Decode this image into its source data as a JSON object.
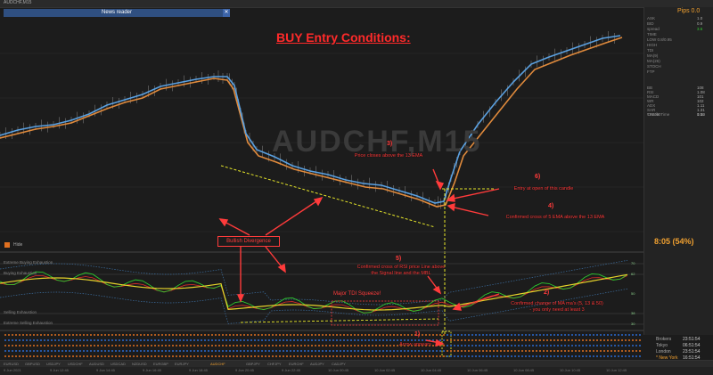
{
  "window": {
    "title": "AUDCHF,M15"
  },
  "news_reader": {
    "label": "News reader"
  },
  "watermark": "AUDCHF,M15",
  "headline": "BUY Entry Conditions:",
  "annotations": {
    "n1": "1)",
    "t1": "Arrow appears",
    "n2": "2)",
    "t2a": "Confirmed change of MA ma's (5, 13 & 50)",
    "t2b": "- you only need at least 3",
    "n3": "3)",
    "t3": "Price closes above the 13 EMA",
    "n4": "4)",
    "t4": "Confirmed cross of 5 EMA above the 13 EMA",
    "n5": "5)",
    "t5a": "Confirmed cross of RSI price Line above",
    "t5b": "the Signal line and the MBL",
    "n6": "6)",
    "t6": "Entry at open of this candle",
    "bullish": "Bullish Divergence",
    "squeeze": "Major TDI Squeeze!"
  },
  "right_panel": {
    "pips_label": "Pips 0.0",
    "rows": [
      {
        "label": "ASK",
        "value": "1.0"
      },
      {
        "label": "BID",
        "value": "0.9"
      },
      {
        "label": "spread",
        "value": "3.5"
      },
      {
        "label": "TIME",
        "value": ""
      },
      {
        "label": "LOW 0.8/0.95",
        "value": ""
      },
      {
        "label": "HIGH",
        "value": ""
      },
      {
        "label": "TDI",
        "value": ""
      },
      {
        "label": "MA(9)",
        "value": ""
      },
      {
        "label": "MA(26)",
        "value": ""
      },
      {
        "label": "STOCH",
        "value": ""
      },
      {
        "label": "FTP",
        "value": ""
      }
    ],
    "rows2": [
      {
        "label": "BB",
        "value": "108"
      },
      {
        "label": "RSI",
        "value": "1.08"
      },
      {
        "label": "MACD",
        "value": "101"
      },
      {
        "label": "WR",
        "value": "102"
      },
      {
        "label": "ADX",
        "value": "1.11"
      },
      {
        "label": "SAR",
        "value": "1.31"
      },
      {
        "label": "TREND",
        "value": "1.12"
      }
    ],
    "candle_time_label": "Candle Time",
    "candle_time_value": "0:00",
    "timer": "8:05 (54%)"
  },
  "hide_button": {
    "label": "Hide"
  },
  "indicator_labels": [
    "Extreme Buying Exhaustion",
    "Buying Exhaustion",
    "Selling Exhaustion",
    "Extreme Selling Exhaustion"
  ],
  "indicator_scale": [
    "70",
    "62",
    "50",
    "38",
    "30"
  ],
  "sessions": [
    {
      "city": "Brokers",
      "time": "23:51:54"
    },
    {
      "city": "Tokyo",
      "time": "06:51:54"
    },
    {
      "city": "London",
      "time": "23:51:54"
    },
    {
      "city": "* New York",
      "time": "16:51:54"
    }
  ],
  "tabs": [
    "EURUSD",
    "GBPUSD",
    "USDJPY",
    "USDCHF",
    "AUDUSD",
    "USDCAD",
    "NZDUSD",
    "EURGBP",
    "EURJPY",
    "AUDCHF",
    "GBPJPY",
    "CHFJPY",
    "EURCHF",
    "AUDJPY",
    "CADJPY"
  ],
  "active_tab": "AUDCHF",
  "time_axis": [
    "9 Jun 2021",
    "9 Jun 12:45",
    "9 Jun 14:45",
    "9 Jun 16:45",
    "9 Jun 18:45",
    "9 Jun 20:45",
    "9 Jun 22:45",
    "10 Jun 00:45",
    "10 Jun 02:45",
    "10 Jun 04:45",
    "10 Jun 06:45",
    "10 Jun 08:45",
    "10 Jun 10:45",
    "10 Jun 12:45"
  ],
  "colors": {
    "ema_fast": "#5aa0e0",
    "ema_slow": "#e08a3c",
    "annotation": "#ff3b3b",
    "dashed": "#e6e62a",
    "tdi_yellow": "#e6d32a",
    "tdi_green": "#2ec82e",
    "tdi_red": "#e02a2a",
    "band": "#3c6ea0"
  }
}
